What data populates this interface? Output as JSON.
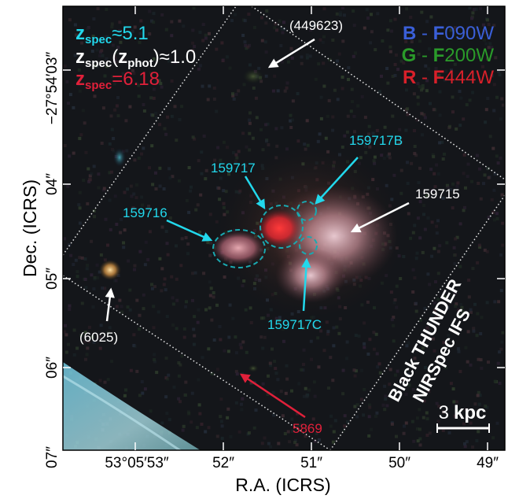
{
  "axes": {
    "xlabel": "R.A. (ICRS)",
    "ylabel": "Dec. (ICRS)",
    "xticks": [
      "53°05′53″",
      "52″",
      "51″",
      "50″",
      "49″"
    ],
    "yticks_main": [
      "04″",
      "05″",
      "06″",
      "07″"
    ],
    "ytick_top": "−27°54′03″"
  },
  "legend_redshift": {
    "line1": {
      "sym": "z",
      "sub": "spec",
      "rest": "≈5.1",
      "color": "#22d8ec"
    },
    "line2": {
      "sym": "z",
      "sub": "spec",
      "paren_open": "(",
      "sym2": "z",
      "sub2": "phot",
      "rest": ")≈1.0",
      "color": "#ffffff"
    },
    "line3": {
      "sym": "z",
      "sub": "spec",
      "rest": "=6.18",
      "color": "#e0203a"
    }
  },
  "legend_filters": {
    "blue": {
      "ch": "B",
      "dash": " - ",
      "f": "F",
      "num": "090W",
      "color": "#3a5fd8"
    },
    "green": {
      "ch": "G",
      "dash": " - ",
      "f": "F",
      "num": "200W",
      "color": "#2a9a2a"
    },
    "red": {
      "ch": "R",
      "dash": " - ",
      "f": "F",
      "num": "444W",
      "color": "#d8202a"
    }
  },
  "labels": {
    "s449623": "(449623)",
    "s159717B": "159717B",
    "s159717": "159717",
    "s159716": "159716",
    "s159715": "159715",
    "s159717C": "159717C",
    "s6025": "(6025)",
    "s5869": "5869"
  },
  "ifs_label": {
    "line1": "Black THUNDER",
    "line2": "NIRSpec IFS"
  },
  "scalebar": {
    "number": "3",
    "unit": "kpc"
  },
  "colors": {
    "cyan": "#22d8ec",
    "teal_circle": "#1aa8b0",
    "white": "#ffffff",
    "red_arrow": "#e0203a",
    "frame": "#000000"
  }
}
